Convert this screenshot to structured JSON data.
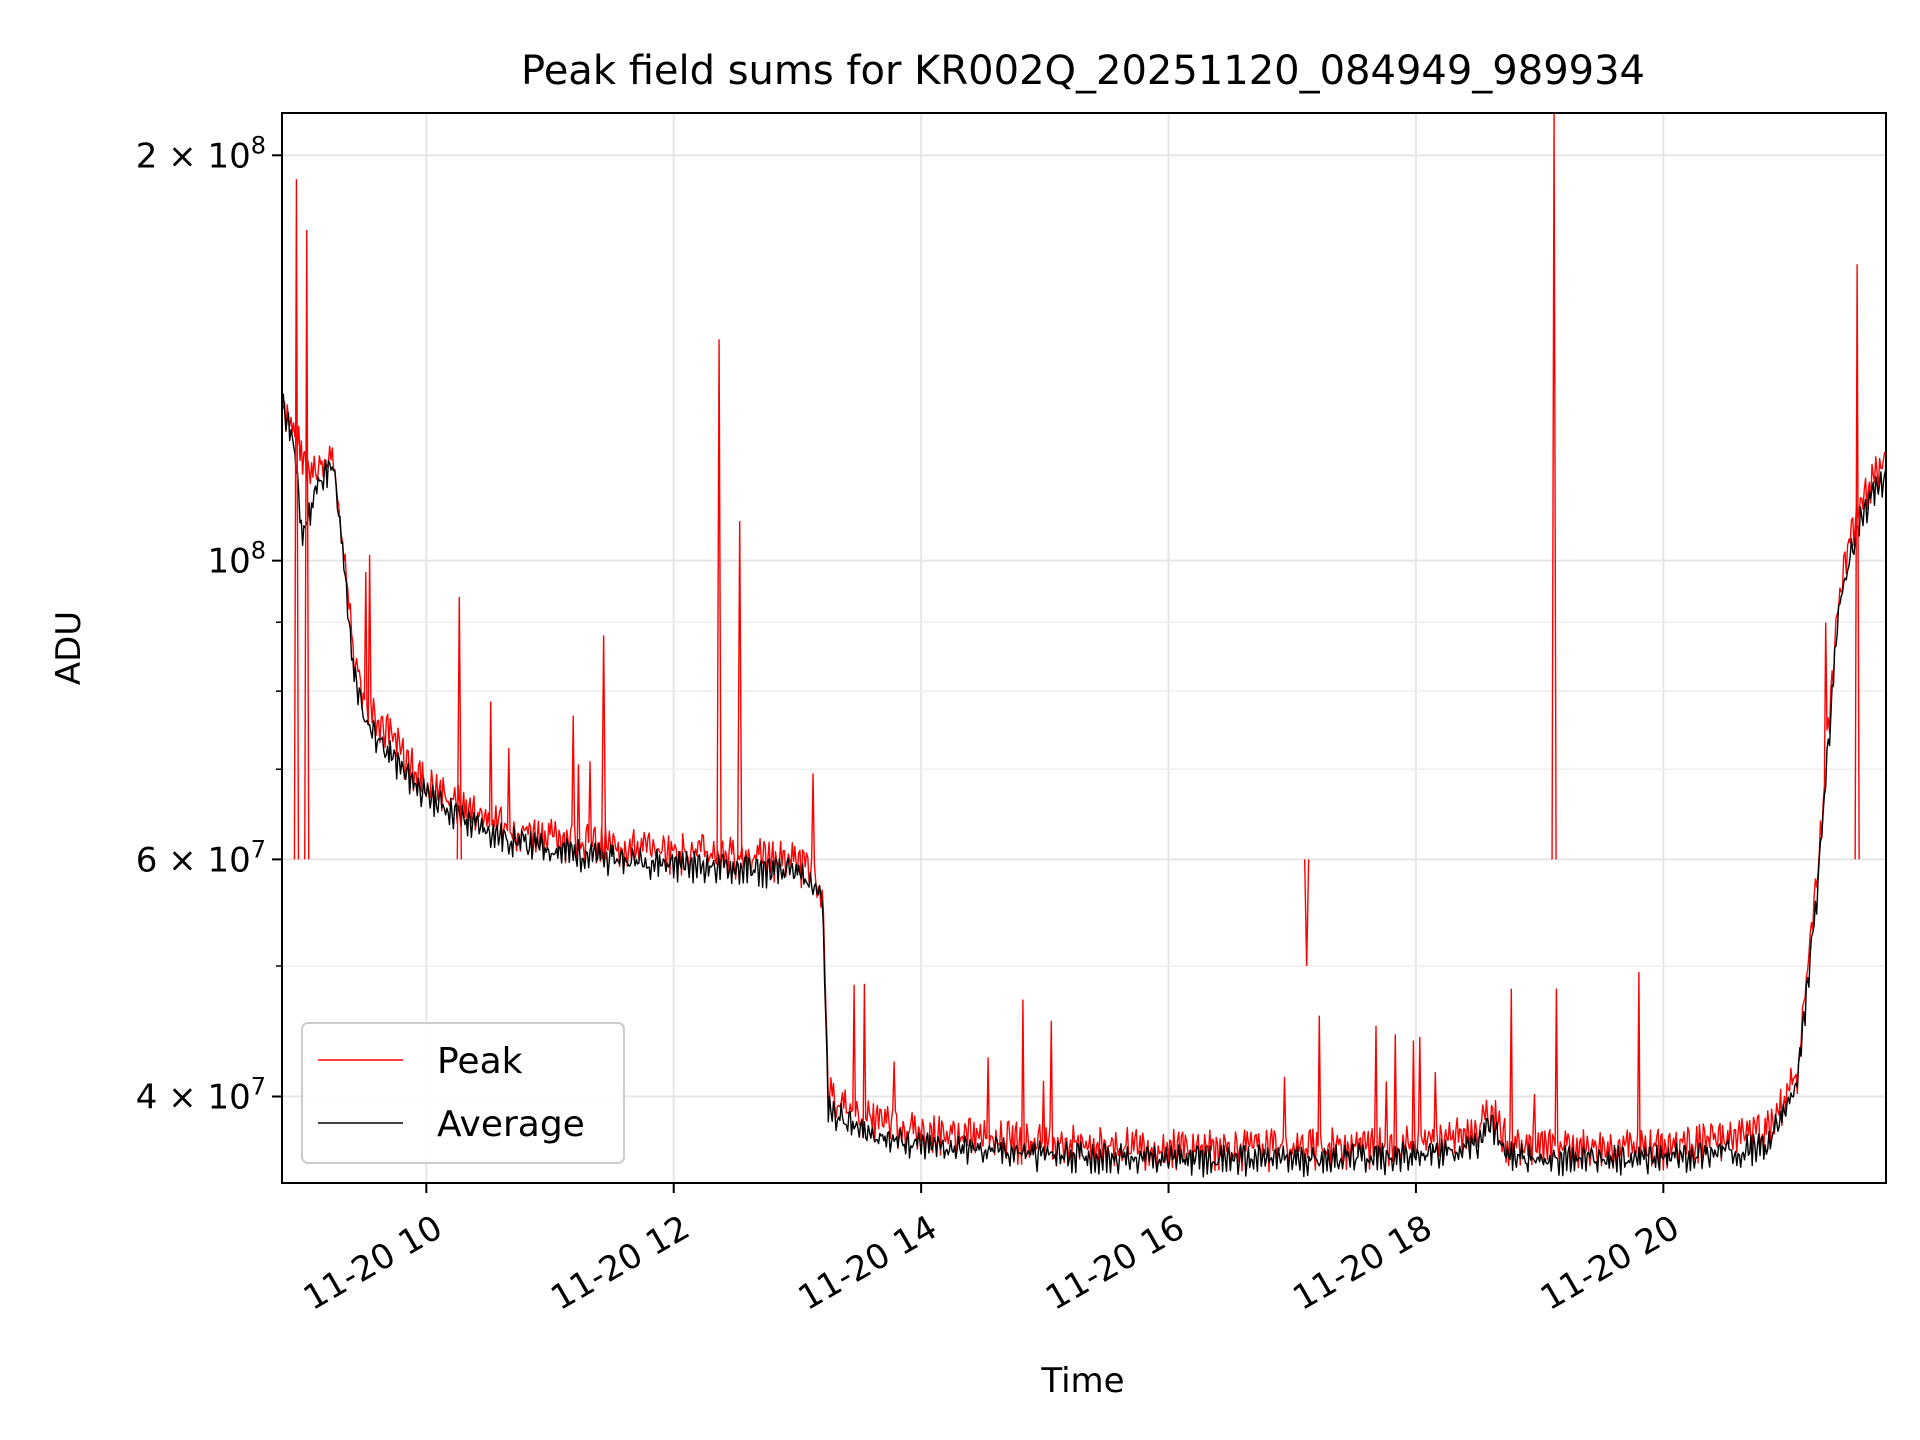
{
  "chart_data": {
    "type": "line",
    "title": "Peak field sums for KR002Q_20251120_084949_989934",
    "xlabel": "Time",
    "ylabel": "ADU",
    "yscale": "log",
    "xlim": [
      "2025-11-20 08:50",
      "2025-11-20 21:48"
    ],
    "ylim": [
      34500000,
      215000000
    ],
    "grid": true,
    "legend_position": "lower-left",
    "x_ticks": [
      {
        "t": "2025-11-20 10:00",
        "label": "11-20 10"
      },
      {
        "t": "2025-11-20 12:00",
        "label": "11-20 12"
      },
      {
        "t": "2025-11-20 14:00",
        "label": "11-20 14"
      },
      {
        "t": "2025-11-20 16:00",
        "label": "11-20 16"
      },
      {
        "t": "2025-11-20 18:00",
        "label": "11-20 18"
      },
      {
        "t": "2025-11-20 20:00",
        "label": "11-20 20"
      }
    ],
    "y_ticks": [
      {
        "value": 40000000,
        "base": "4 × 10",
        "exp": "7"
      },
      {
        "value": 60000000,
        "base": "6 × 10",
        "exp": "7"
      },
      {
        "value": 100000000,
        "base": "10",
        "exp": "8"
      },
      {
        "value": 200000000,
        "base": "2 × 10",
        "exp": "8"
      }
    ],
    "y_minor_ticks": [
      50000000,
      70000000,
      80000000,
      90000000
    ],
    "series": [
      {
        "name": "Peak",
        "color": "#ff0000",
        "x": [
          "2025-11-20 08:50",
          "2025-11-20 08:55",
          "2025-11-20 09:00",
          "2025-11-20 09:05",
          "2025-11-20 09:10",
          "2025-11-20 09:15",
          "2025-11-20 09:20",
          "2025-11-20 09:25",
          "2025-11-20 09:30",
          "2025-11-20 09:40",
          "2025-11-20 09:50",
          "2025-11-20 10:00",
          "2025-11-20 10:20",
          "2025-11-20 10:40",
          "2025-11-20 11:00",
          "2025-11-20 11:30",
          "2025-11-20 12:00",
          "2025-11-20 12:30",
          "2025-11-20 13:00",
          "2025-11-20 13:12",
          "2025-11-20 13:15",
          "2025-11-20 13:30",
          "2025-11-20 14:00",
          "2025-11-20 15:00",
          "2025-11-20 16:00",
          "2025-11-20 17:00",
          "2025-11-20 18:00",
          "2025-11-20 18:30",
          "2025-11-20 18:36",
          "2025-11-20 18:45",
          "2025-11-20 19:00",
          "2025-11-20 20:00",
          "2025-11-20 20:50",
          "2025-11-20 21:05",
          "2025-11-20 21:15",
          "2025-11-20 21:25",
          "2025-11-20 21:35",
          "2025-11-20 21:48"
        ],
        "y": [
          133000000,
          127000000,
          121000000,
          118000000,
          119000000,
          120000000,
          103000000,
          86000000,
          80000000,
          76000000,
          72000000,
          69000000,
          66000000,
          64000000,
          63000000,
          62000000,
          61500000,
          61000000,
          60500000,
          58000000,
          40500000,
          39000000,
          38000000,
          37300000,
          37000000,
          37000000,
          37200000,
          38000000,
          39500000,
          37200000,
          37000000,
          37000000,
          38000000,
          42000000,
          60000000,
          95000000,
          112000000,
          120000000
        ]
      },
      {
        "name": "Average",
        "color": "#000000",
        "x": [
          "2025-11-20 08:50",
          "2025-11-20 08:55",
          "2025-11-20 09:00",
          "2025-11-20 09:05",
          "2025-11-20 09:10",
          "2025-11-20 09:15",
          "2025-11-20 09:20",
          "2025-11-20 09:25",
          "2025-11-20 09:30",
          "2025-11-20 09:40",
          "2025-11-20 09:50",
          "2025-11-20 10:00",
          "2025-11-20 10:20",
          "2025-11-20 10:40",
          "2025-11-20 11:00",
          "2025-11-20 11:30",
          "2025-11-20 12:00",
          "2025-11-20 12:30",
          "2025-11-20 13:00",
          "2025-11-20 13:12",
          "2025-11-20 13:15",
          "2025-11-20 13:30",
          "2025-11-20 14:00",
          "2025-11-20 15:00",
          "2025-11-20 16:00",
          "2025-11-20 17:00",
          "2025-11-20 18:00",
          "2025-11-20 18:30",
          "2025-11-20 18:36",
          "2025-11-20 18:45",
          "2025-11-20 19:00",
          "2025-11-20 20:00",
          "2025-11-20 20:50",
          "2025-11-20 21:05",
          "2025-11-20 21:15",
          "2025-11-20 21:25",
          "2025-11-20 21:35",
          "2025-11-20 21:48"
        ],
        "y": [
          132000000,
          125000000,
          105000000,
          112000000,
          117000000,
          118000000,
          100000000,
          83000000,
          77000000,
          73000000,
          70000000,
          67500000,
          64500000,
          62500000,
          61500000,
          60500000,
          60000000,
          59500000,
          59000000,
          57000000,
          39500000,
          38000000,
          37000000,
          36500000,
          36200000,
          36200000,
          36400000,
          37000000,
          38500000,
          36400000,
          36200000,
          36200000,
          37000000,
          41000000,
          58000000,
          93000000,
          108000000,
          117000000
        ]
      }
    ],
    "peak_spikes": [
      {
        "t": "2025-11-20 08:57",
        "y": 192000000
      },
      {
        "t": "2025-11-20 09:02",
        "y": 176000000
      },
      {
        "t": "2025-11-20 10:16",
        "y": 94000000
      },
      {
        "t": "2025-11-20 11:26",
        "y": 88000000
      },
      {
        "t": "2025-11-20 12:22",
        "y": 146000000
      },
      {
        "t": "2025-11-20 12:32",
        "y": 107000000
      },
      {
        "t": "2025-11-20 17:07",
        "y": 50000000
      },
      {
        "t": "2025-11-20 19:07",
        "y": 215000000
      },
      {
        "t": "2025-11-20 21:34",
        "y": 166000000
      }
    ]
  }
}
